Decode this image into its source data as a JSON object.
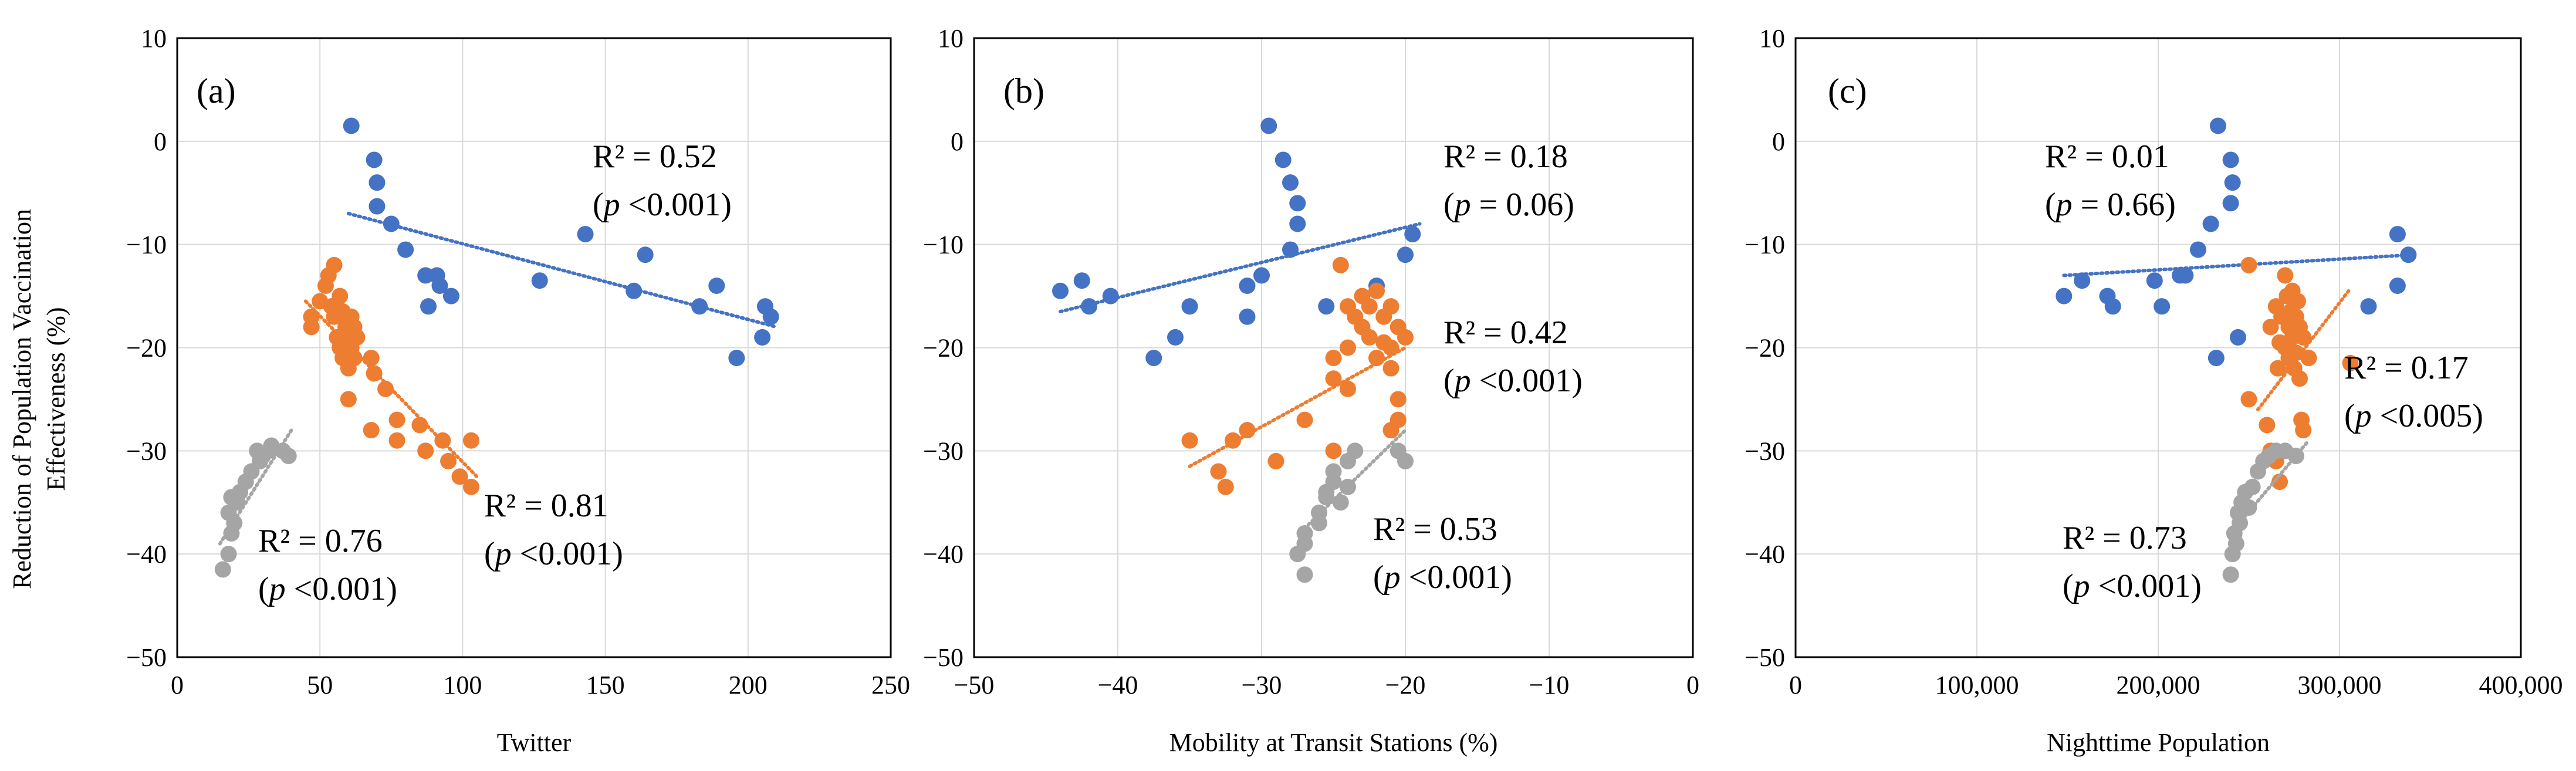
{
  "y_axis_label_line1": "Reduction of Population Vaccination",
  "y_axis_label_line2": "Effectiveness (%)",
  "colors": {
    "blue": "#4472C4",
    "orange": "#ED7D31",
    "gray": "#A5A5A5",
    "grid": "#D9D9D9"
  },
  "chart_data": [
    {
      "type": "scatter",
      "panel_label": "(a)",
      "xlabel": "Twitter",
      "ylabel": "Reduction of Population Vaccination Effectiveness (%)",
      "xlim": [
        0,
        250
      ],
      "ylim": [
        -50,
        10
      ],
      "xticks": [
        0,
        50,
        100,
        150,
        200,
        250
      ],
      "xtick_labels": [
        "0",
        "50",
        "100",
        "150",
        "200",
        "250"
      ],
      "yticks": [
        -50,
        -40,
        -30,
        -20,
        -10,
        0,
        10
      ],
      "ytick_labels": [
        "−50",
        "−40",
        "−30",
        "−20",
        "−10",
        "0",
        "10"
      ],
      "series": [
        {
          "name": "blue",
          "color": "blue",
          "points": [
            [
              61,
              1.5
            ],
            [
              69,
              -1.8
            ],
            [
              70,
              -4
            ],
            [
              70,
              -6.3
            ],
            [
              75,
              -8
            ],
            [
              80,
              -10.5
            ],
            [
              87,
              -13
            ],
            [
              88,
              -16
            ],
            [
              91,
              -13
            ],
            [
              92,
              -14
            ],
            [
              96,
              -15
            ],
            [
              127,
              -13.5
            ],
            [
              143,
              -9
            ],
            [
              160,
              -14.5
            ],
            [
              164,
              -11
            ],
            [
              183,
              -16
            ],
            [
              189,
              -14
            ],
            [
              196,
              -21
            ],
            [
              205,
              -19
            ],
            [
              206,
              -16
            ],
            [
              208,
              -17
            ]
          ],
          "trend": [
            [
              60,
              -7
            ],
            [
              210,
              -18
            ]
          ],
          "r2_label": "R² = 0.52",
          "p_label": "(p <0.001)"
        },
        {
          "name": "orange",
          "color": "orange",
          "points": [
            [
              47,
              -17
            ],
            [
              47,
              -18
            ],
            [
              50,
              -15.5
            ],
            [
              52,
              -14
            ],
            [
              53,
              -13
            ],
            [
              54,
              -16
            ],
            [
              55,
              -12
            ],
            [
              55,
              -17
            ],
            [
              56,
              -19
            ],
            [
              57,
              -15
            ],
            [
              57,
              -20
            ],
            [
              58,
              -16.5
            ],
            [
              58,
              -21
            ],
            [
              59,
              -18
            ],
            [
              60,
              -19.5
            ],
            [
              60,
              -22
            ],
            [
              61,
              -17
            ],
            [
              61,
              -20
            ],
            [
              62,
              -18
            ],
            [
              62,
              -21
            ],
            [
              63,
              -19
            ],
            [
              60,
              -25
            ],
            [
              68,
              -21
            ],
            [
              69,
              -22.5
            ],
            [
              73,
              -24
            ],
            [
              68,
              -28
            ],
            [
              77,
              -27
            ],
            [
              77,
              -29
            ],
            [
              85,
              -27.5
            ],
            [
              87,
              -30
            ],
            [
              93,
              -29
            ],
            [
              95,
              -31
            ],
            [
              99,
              -32.5
            ],
            [
              103,
              -33.5
            ],
            [
              103,
              -29
            ]
          ],
          "trend": [
            [
              45,
              -15.5
            ],
            [
              105,
              -32.5
            ]
          ],
          "r2_label": "R² = 0.81",
          "p_label": "(p <0.001)"
        },
        {
          "name": "gray",
          "color": "gray",
          "points": [
            [
              16,
              -41.5
            ],
            [
              18,
              -40
            ],
            [
              19,
              -38
            ],
            [
              18,
              -36
            ],
            [
              19,
              -34.5
            ],
            [
              21,
              -35
            ],
            [
              22,
              -34
            ],
            [
              24,
              -33
            ],
            [
              26,
              -32
            ],
            [
              28,
              -30
            ],
            [
              29,
              -31
            ],
            [
              30,
              -30.5
            ],
            [
              32,
              -30
            ],
            [
              33,
              -29.5
            ],
            [
              37,
              -30
            ],
            [
              39,
              -30.5
            ],
            [
              20,
              -37
            ]
          ],
          "trend": [
            [
              15,
              -39
            ],
            [
              40,
              -28
            ]
          ],
          "r2_label": "R² = 0.76",
          "p_label": "(p <0.001)"
        }
      ]
    },
    {
      "type": "scatter",
      "panel_label": "(b)",
      "xlabel": "Mobility at Transit Stations (%)",
      "ylabel": "",
      "xlim": [
        -50,
        0
      ],
      "ylim": [
        -50,
        10
      ],
      "xticks": [
        -50,
        -40,
        -30,
        -20,
        -10,
        0
      ],
      "xtick_labels": [
        "−50",
        "−40",
        "−30",
        "−20",
        "−10",
        "0"
      ],
      "yticks": [
        -50,
        -40,
        -30,
        -20,
        -10,
        0,
        10
      ],
      "ytick_labels": [
        "−50",
        "−40",
        "−30",
        "−20",
        "−10",
        "0",
        "10"
      ],
      "series": [
        {
          "name": "blue",
          "color": "blue",
          "points": [
            [
              -44,
              -14.5
            ],
            [
              -42.5,
              -13.5
            ],
            [
              -42,
              -16
            ],
            [
              -40.5,
              -15
            ],
            [
              -37.5,
              -21
            ],
            [
              -36,
              -19
            ],
            [
              -35,
              -16
            ],
            [
              -31,
              -14
            ],
            [
              -31,
              -17
            ],
            [
              -30,
              -13
            ],
            [
              -29.5,
              1.5
            ],
            [
              -28.5,
              -1.8
            ],
            [
              -28,
              -4
            ],
            [
              -27.5,
              -6
            ],
            [
              -27.5,
              -8
            ],
            [
              -28,
              -10.5
            ],
            [
              -25.5,
              -16
            ],
            [
              -22,
              -14
            ],
            [
              -20,
              -11
            ],
            [
              -19.5,
              -9
            ]
          ],
          "trend": [
            [
              -44,
              -16.5
            ],
            [
              -19,
              -8
            ]
          ],
          "r2_label": "R² = 0.18",
          "p_label": "(p = 0.06)"
        },
        {
          "name": "orange",
          "color": "orange",
          "points": [
            [
              -35,
              -29
            ],
            [
              -33,
              -32
            ],
            [
              -32.5,
              -33.5
            ],
            [
              -32,
              -29
            ],
            [
              -31,
              -28
            ],
            [
              -29,
              -31
            ],
            [
              -27,
              -27
            ],
            [
              -25,
              -23
            ],
            [
              -25,
              -21
            ],
            [
              -24.5,
              -12
            ],
            [
              -24,
              -16
            ],
            [
              -24,
              -20
            ],
            [
              -23.5,
              -17
            ],
            [
              -23,
              -15
            ],
            [
              -23,
              -18
            ],
            [
              -22.5,
              -16
            ],
            [
              -22.5,
              -19
            ],
            [
              -22,
              -14.5
            ],
            [
              -22,
              -21
            ],
            [
              -21.5,
              -17
            ],
            [
              -21.5,
              -19.5
            ],
            [
              -21,
              -16
            ],
            [
              -21,
              -20
            ],
            [
              -21,
              -22
            ],
            [
              -20.5,
              -18
            ],
            [
              -20.5,
              -25
            ],
            [
              -20.5,
              -27
            ],
            [
              -20,
              -19
            ],
            [
              -21,
              -28
            ],
            [
              -25,
              -30
            ],
            [
              -24,
              -24
            ]
          ],
          "trend": [
            [
              -35,
              -31.5
            ],
            [
              -20,
              -20
            ]
          ],
          "r2_label": "R² = 0.42",
          "p_label": "(p <0.001)"
        },
        {
          "name": "gray",
          "color": "gray",
          "points": [
            [
              -27,
              -42
            ],
            [
              -27.5,
              -40
            ],
            [
              -27,
              -38
            ],
            [
              -26,
              -36
            ],
            [
              -25.5,
              -34
            ],
            [
              -25,
              -33
            ],
            [
              -24.5,
              -35
            ],
            [
              -24,
              -31
            ],
            [
              -23.5,
              -30
            ],
            [
              -24,
              -33.5
            ],
            [
              -25,
              -32
            ],
            [
              -26,
              -37
            ],
            [
              -27,
              -39
            ],
            [
              -20.5,
              -30
            ],
            [
              -20,
              -31
            ],
            [
              -25.5,
              -34.5
            ]
          ],
          "trend": [
            [
              -27,
              -37.5
            ],
            [
              -20,
              -28
            ]
          ],
          "r2_label": "R² = 0.53",
          "p_label": "(p <0.001)"
        }
      ]
    },
    {
      "type": "scatter",
      "panel_label": "(c)",
      "xlabel": "Nighttime Population",
      "ylabel": "",
      "xlim": [
        0,
        400000
      ],
      "ylim": [
        -50,
        10
      ],
      "xticks": [
        0,
        100000,
        200000,
        300000,
        400000
      ],
      "xtick_labels": [
        "0",
        "100,000",
        "200,000",
        "300,000",
        "400,000"
      ],
      "yticks": [
        -50,
        -40,
        -30,
        -20,
        -10,
        0,
        10
      ],
      "ytick_labels": [
        "−50",
        "−40",
        "−30",
        "−20",
        "−10",
        "0",
        "10"
      ],
      "series": [
        {
          "name": "blue",
          "color": "blue",
          "points": [
            [
              148000,
              -15
            ],
            [
              158000,
              -13.5
            ],
            [
              172000,
              -15
            ],
            [
              175000,
              -16
            ],
            [
              198000,
              -13.5
            ],
            [
              202000,
              -16
            ],
            [
              212000,
              -13
            ],
            [
              215000,
              -13
            ],
            [
              222000,
              -10.5
            ],
            [
              229000,
              -8
            ],
            [
              232000,
              -21
            ],
            [
              233000,
              1.5
            ],
            [
              240000,
              -1.8
            ],
            [
              241000,
              -4
            ],
            [
              240000,
              -6
            ],
            [
              244000,
              -19
            ],
            [
              316000,
              -16
            ],
            [
              332000,
              -14
            ],
            [
              332000,
              -9
            ],
            [
              338000,
              -11
            ]
          ],
          "trend": [
            [
              148000,
              -13
            ],
            [
              340000,
              -11
            ]
          ],
          "r2_label": "R² = 0.01",
          "p_label": "(p = 0.66)"
        },
        {
          "name": "orange",
          "color": "orange",
          "points": [
            [
              250000,
              -12
            ],
            [
              250000,
              -25
            ],
            [
              260000,
              -27.5
            ],
            [
              262000,
              -18
            ],
            [
              265000,
              -16
            ],
            [
              266000,
              -22
            ],
            [
              267000,
              -19.5
            ],
            [
              268000,
              -17
            ],
            [
              270000,
              -20
            ],
            [
              270000,
              -13
            ],
            [
              271000,
              -15
            ],
            [
              272000,
              -18
            ],
            [
              272000,
              -21
            ],
            [
              273000,
              -16.5
            ],
            [
              274000,
              -19
            ],
            [
              274000,
              -14.5
            ],
            [
              275000,
              -22
            ],
            [
              276000,
              -17
            ],
            [
              276000,
              -20.5
            ],
            [
              277000,
              -15.5
            ],
            [
              278000,
              -18
            ],
            [
              278000,
              -23
            ],
            [
              279000,
              -27
            ],
            [
              280000,
              -28
            ],
            [
              280000,
              -19
            ],
            [
              283000,
              -21
            ],
            [
              306000,
              -21.5
            ],
            [
              262000,
              -30
            ],
            [
              265000,
              -31
            ],
            [
              267000,
              -33
            ]
          ],
          "trend": [
            [
              255000,
              -26
            ],
            [
              305000,
              -14.5
            ]
          ],
          "r2_label": "R² = 0.17",
          "p_label": "(p <0.005)"
        },
        {
          "name": "gray",
          "color": "gray",
          "points": [
            [
              240000,
              -42
            ],
            [
              241000,
              -40
            ],
            [
              242000,
              -38
            ],
            [
              244000,
              -36
            ],
            [
              246000,
              -35
            ],
            [
              248000,
              -34
            ],
            [
              252000,
              -33.5
            ],
            [
              255000,
              -32
            ],
            [
              258000,
              -31
            ],
            [
              261000,
              -30.5
            ],
            [
              265000,
              -30
            ],
            [
              270000,
              -30
            ],
            [
              276000,
              -30.5
            ],
            [
              243000,
              -39
            ],
            [
              245000,
              -37
            ],
            [
              250000,
              -35.5
            ]
          ],
          "trend": [
            [
              240000,
              -38
            ],
            [
              283000,
              -29
            ]
          ],
          "r2_label": "R² = 0.73",
          "p_label": "(p <0.001)"
        }
      ]
    }
  ]
}
